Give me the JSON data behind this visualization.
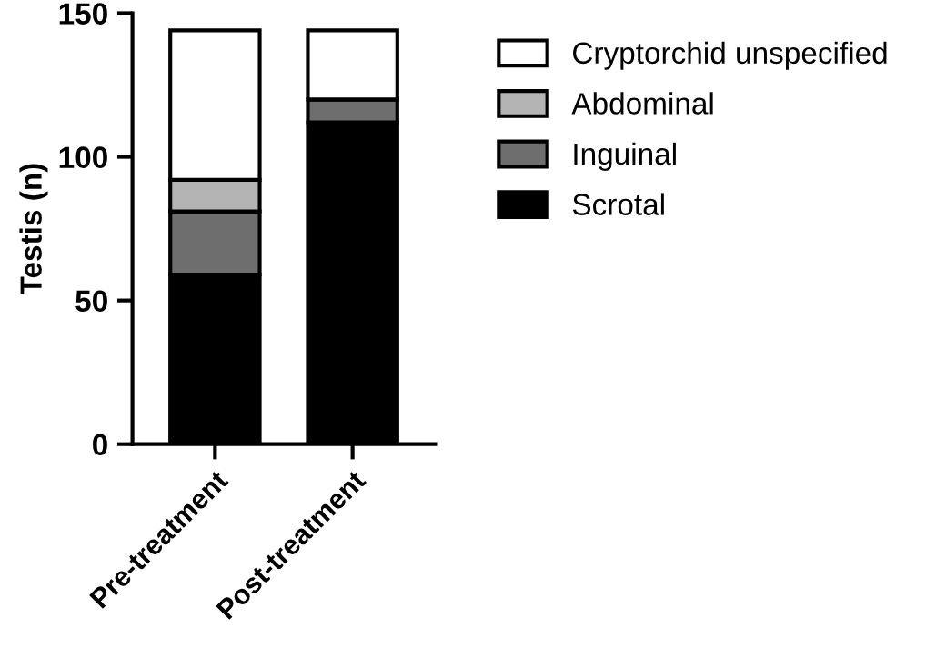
{
  "chart_data": {
    "type": "bar",
    "stacked": true,
    "ylabel": "Testis (n)",
    "categories": [
      "Pre-treatment",
      "Post-treatment"
    ],
    "series": [
      {
        "name": "Scrotal",
        "color": "#000000",
        "values": [
          59,
          112
        ]
      },
      {
        "name": "Inguinal",
        "color": "#6e6e6e",
        "values": [
          22,
          8
        ]
      },
      {
        "name": "Abdominal",
        "color": "#b4b4b4",
        "values": [
          11,
          0
        ]
      },
      {
        "name": "Cryptorchid unspecified",
        "color": "#ffffff",
        "values": [
          52,
          24
        ]
      }
    ],
    "ylim": [
      0,
      150
    ],
    "yticks": [
      0,
      50,
      100,
      150
    ],
    "grid": false,
    "legend": "right"
  }
}
